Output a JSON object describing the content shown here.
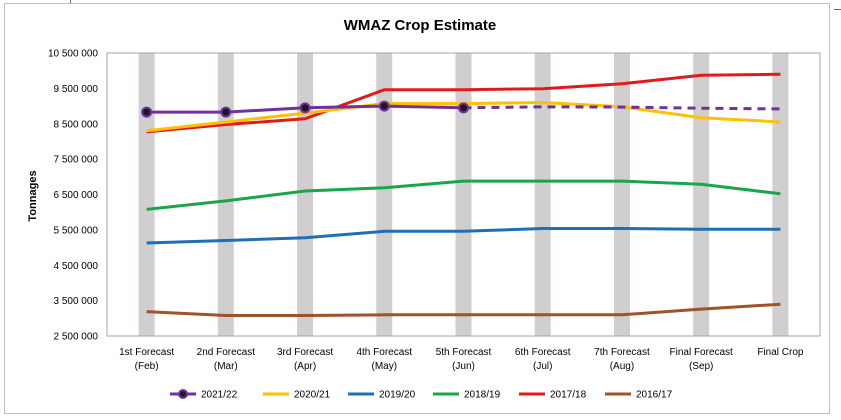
{
  "chart_data": {
    "type": "line",
    "title": "WMAZ Crop Estimate",
    "ylabel": "Tonnages",
    "xlabel": "",
    "ylim": [
      2500000,
      10500000
    ],
    "yticks": [
      2500000,
      3500000,
      4500000,
      5500000,
      6500000,
      7500000,
      8500000,
      9500000,
      10500000
    ],
    "ytick_labels": [
      "2 500 000",
      "3 500 000",
      "4 500 000",
      "5 500 000",
      "6 500 000",
      "7 500 000",
      "8 500 000",
      "9 500 000",
      "10 500 000"
    ],
    "categories": [
      [
        "1st Forecast",
        "(Feb)"
      ],
      [
        "2nd Forecast",
        "(Mar)"
      ],
      [
        "3rd Forecast",
        "(Apr)"
      ],
      [
        "4th Forecast",
        "(May)"
      ],
      [
        "5th Forecast",
        "(Jun)"
      ],
      [
        "6th Forecast",
        "(Jul)"
      ],
      [
        "7th Forecast",
        "(Aug)"
      ],
      [
        "Final Forecast",
        "(Sep)"
      ],
      [
        "Final Crop"
      ]
    ],
    "grid": "vertical category bands",
    "legend": "bottom",
    "series": [
      {
        "name": "2021/22",
        "color": "#7030a0",
        "markers": true,
        "marker_count": 5,
        "dashed_after": 4,
        "values": [
          8830000,
          8830000,
          8950000,
          9000000,
          8950000,
          8980000,
          8970000,
          8940000,
          8920000
        ]
      },
      {
        "name": "2020/21",
        "color": "#ffc000",
        "values": [
          8300000,
          8550000,
          8800000,
          9070000,
          9070000,
          9100000,
          8980000,
          8670000,
          8550000
        ]
      },
      {
        "name": "2019/20",
        "color": "#1f6fb5",
        "values": [
          5130000,
          5200000,
          5280000,
          5460000,
          5460000,
          5540000,
          5540000,
          5520000,
          5520000
        ]
      },
      {
        "name": "2018/19",
        "color": "#19a64b",
        "values": [
          6080000,
          6320000,
          6600000,
          6690000,
          6880000,
          6880000,
          6880000,
          6790000,
          6520000
        ]
      },
      {
        "name": "2017/18",
        "color": "#e31a1c",
        "values": [
          8270000,
          8480000,
          8640000,
          9460000,
          9460000,
          9490000,
          9630000,
          9870000,
          9900000
        ]
      },
      {
        "name": "2016/17",
        "color": "#a0522d",
        "values": [
          3190000,
          3080000,
          3080000,
          3100000,
          3100000,
          3100000,
          3100000,
          3260000,
          3400000
        ]
      }
    ]
  }
}
